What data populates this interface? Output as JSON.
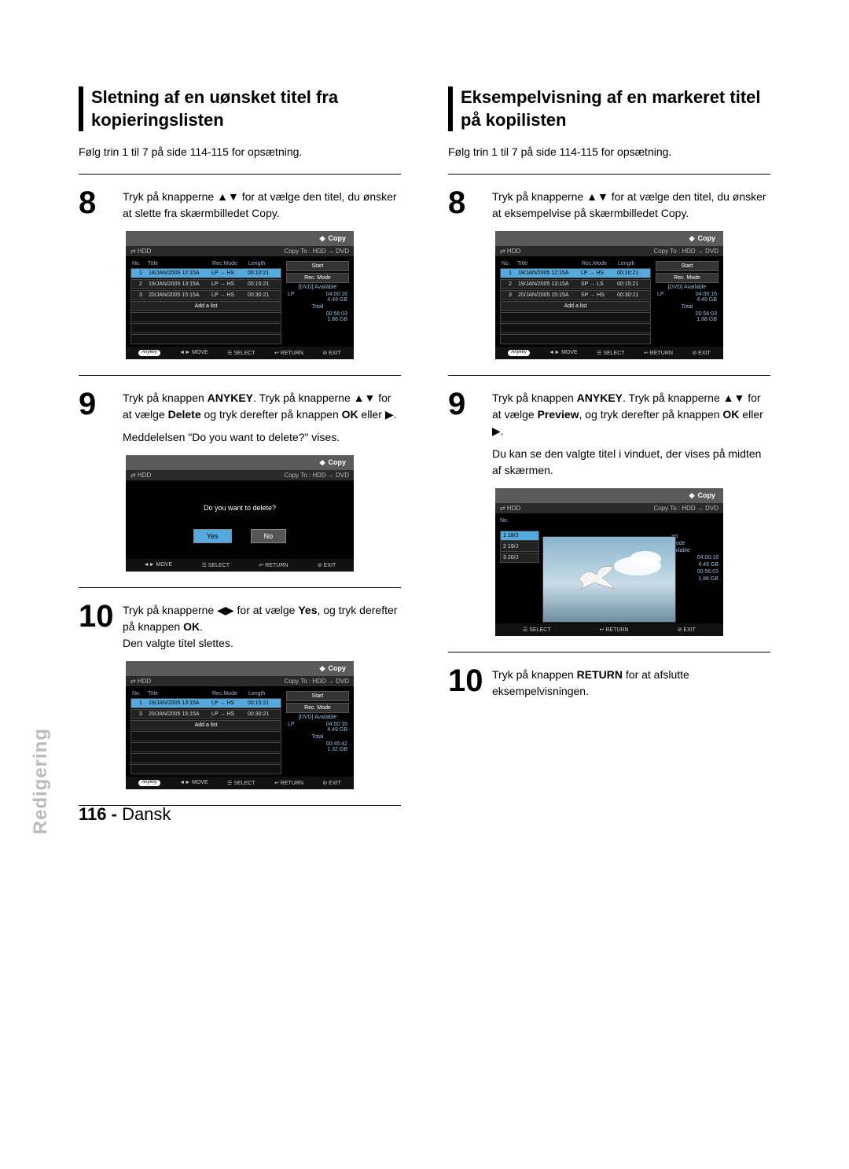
{
  "page": {
    "number": "116 -",
    "lang": "Dansk"
  },
  "sidetab": "Redigering",
  "left": {
    "title": "Sletning af en uønsket titel fra kopieringslisten",
    "intro": "Følg trin 1 til 7 på side 114-115 for opsætning.",
    "s8": {
      "num": "8",
      "text_a": "Tryk på knapperne ▲▼ for at vælge den titel, du ønsker at slette fra skærmbilledet Copy."
    },
    "s9": {
      "num": "9",
      "line1": "Tryk på knappen ",
      "b1": "ANYKEY",
      "line2": ". Tryk på knapperne ▲▼ for at vælge ",
      "b2": "Delete",
      "line3": " og tryk derefter på knappen ",
      "b3": "OK",
      "line4": " eller ▶.",
      "msg": "Meddelelsen \"Do you want to delete?\" vises."
    },
    "s10": {
      "num": "10",
      "line1": "Tryk på knapperne ◀▶ for at vælge ",
      "b1": "Yes",
      "line2": ", og tryk derefter på knappen ",
      "b2": "OK",
      "line3": ".",
      "line4": "Den valgte titel slettes."
    }
  },
  "right": {
    "title": "Eksempelvisning af en markeret titel på kopilisten",
    "intro": "Følg trin 1 til 7 på side 114-115 for opsætning.",
    "s8": {
      "num": "8",
      "text_a": "Tryk på knapperne ▲▼ for at vælge den titel, du ønsker at eksempelvise på skærmbilledet Copy."
    },
    "s9": {
      "num": "9",
      "line1": "Tryk på knappen ",
      "b1": "ANYKEY",
      "line2": ". Tryk på knapperne ▲▼ for at vælge ",
      "b2": "Preview",
      "line3": ", og tryk derefter på knappen ",
      "b3": "OK",
      "line4": " eller ▶.",
      "msg": "Du kan se den valgte titel i vinduet, der vises på midten af skærmen."
    },
    "s10": {
      "num": "10",
      "line1": "Tryk på knappen ",
      "b1": "RETURN",
      "line2": " for at afslutte eksempelvisningen."
    }
  },
  "tv_common": {
    "top": "Copy",
    "hdr_left": "⇄  HDD",
    "hdr_right": "Copy To : HDD → DVD",
    "cols": {
      "no": "No.",
      "title": "Title",
      "mode": "Rec.Mode",
      "len": "Length"
    },
    "add": "Add a list",
    "side_start": "Start",
    "side_mode": "Rec. Mode",
    "dvd_avail": "[DVD] Available",
    "total": "Total",
    "foot_anykey": "Anykey",
    "foot_move": "◄►  MOVE",
    "foot_select": "☰  SELECT",
    "foot_return": "↩  RETURN",
    "foot_exit": "⊘  EXIT"
  },
  "tv_left_8": {
    "rows": [
      {
        "n": "1",
        "t": "18/JAN/2005 12:15A",
        "m": "LP → HS",
        "l": "00:10:21",
        "hi": true
      },
      {
        "n": "2",
        "t": "19/JAN/2005 13:15A",
        "m": "LP → HS",
        "l": "00:15:21"
      },
      {
        "n": "3",
        "t": "20/JAN/2005 15:15A",
        "m": "LP → HS",
        "l": "00:30:21"
      }
    ],
    "lp_label": "LP",
    "lp_time": "04:00:16",
    "lp_size": "4.49 GB",
    "tot_time": "00:56:03",
    "tot_size": "1.88 GB"
  },
  "tv_left_9_modal": {
    "q": "Do you want to delete?",
    "yes": "Yes",
    "no": "No"
  },
  "tv_left_10": {
    "rows": [
      {
        "n": "1",
        "t": "19/JAN/2005 13:15A",
        "m": "LP → HS",
        "l": "00:15:21",
        "hi": true
      },
      {
        "n": "3",
        "t": "20/JAN/2005 15:15A",
        "m": "LP → HS",
        "l": "00:30:21"
      }
    ],
    "lp_label": "LP",
    "lp_time": "04:00:16",
    "lp_size": "4.49 GB",
    "tot_time": "00:45:42",
    "tot_size": "1.32 GB"
  },
  "tv_right_8": {
    "rows": [
      {
        "n": "1",
        "t": "18/JAN/2005 12:15A",
        "m": "LP → HS",
        "l": "00:10:21",
        "hi": true
      },
      {
        "n": "2",
        "t": "19/JAN/2005 13:15A",
        "m": "SP → LS",
        "l": "00:15:21"
      },
      {
        "n": "3",
        "t": "20/JAN/2005 15:15A",
        "m": "SP → HS",
        "l": "00:30:21"
      }
    ],
    "lp_label": "LP",
    "lp_time": "04:00:16",
    "lp_size": "4.49 GB",
    "tot_time": "00:56:03",
    "tot_size": "1.88 GB"
  },
  "tv_right_9_prev": {
    "no": "No.",
    "mini_rows": [
      {
        "n": "1",
        "t": "18/J",
        "hi": true
      },
      {
        "n": "2",
        "t": "19/J"
      },
      {
        "n": "3",
        "t": "20/J"
      }
    ],
    "rlabels": {
      "title": "art",
      "mode": "Mode",
      "avail": "vailable",
      "lp": "04:00:16",
      "lpg": "4.49 GB",
      "tot": "00:56:03",
      "totg": "1.88 GB"
    }
  }
}
